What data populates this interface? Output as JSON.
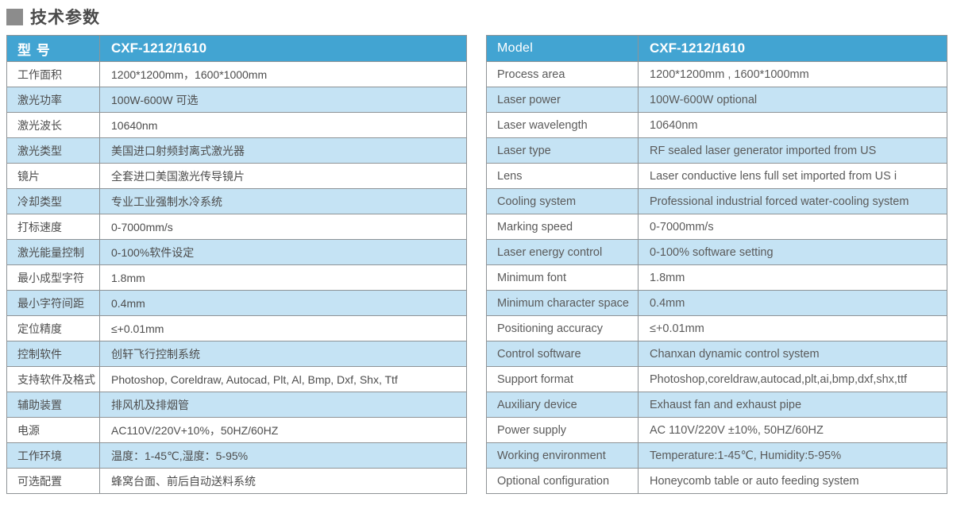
{
  "page_title": {
    "text": "技术参数"
  },
  "colors": {
    "header_bg": "#42A4D2",
    "row_alt_bg": "#C5E3F4",
    "row_bg": "#FFFFFF",
    "border": "#8E9396",
    "header_text": "#FFFFFF",
    "title_square": "#8C8C8C"
  },
  "left_table": {
    "header": {
      "label": "型 号",
      "value": "CXF-1212/1610"
    },
    "rows": [
      {
        "label": "工作面积",
        "value": "1200*1200mm，1600*1000mm"
      },
      {
        "label": "激光功率",
        "value": "100W-600W 可选"
      },
      {
        "label": "激光波长",
        "value": "10640nm"
      },
      {
        "label": "激光类型",
        "value": "美国进口射频封离式激光器"
      },
      {
        "label": "镜片",
        "value": "全套进口美国激光传导镜片"
      },
      {
        "label": "冷却类型",
        "value": "专业工业强制水冷系统"
      },
      {
        "label": "打标速度",
        "value": "0-7000mm/s"
      },
      {
        "label": "激光能量控制",
        "value": "0-100%软件设定"
      },
      {
        "label": "最小成型字符",
        "value": "1.8mm"
      },
      {
        "label": "最小字符间距",
        "value": "0.4mm"
      },
      {
        "label": "定位精度",
        "value": "≤+0.01mm"
      },
      {
        "label": "控制软件",
        "value": "创轩飞行控制系统"
      },
      {
        "label": "支持软件及格式",
        "value": "Photoshop, Coreldraw, Autocad, Plt, Al, Bmp, Dxf, Shx, Ttf"
      },
      {
        "label": "辅助装置",
        "value": "排风机及排烟管"
      },
      {
        "label": "电源",
        "value": "AC110V/220V+10%，50HZ/60HZ"
      },
      {
        "label": "工作环境",
        "value": "温度：1-45℃,湿度：5-95%"
      },
      {
        "label": "可选配置",
        "value": "蜂窝台面、前后自动送料系统"
      }
    ]
  },
  "right_table": {
    "header": {
      "label": "Model",
      "value": "CXF-1212/1610"
    },
    "rows": [
      {
        "label": "Process area",
        "value": "1200*1200mm , 1600*1000mm"
      },
      {
        "label": "Laser power",
        "value": "100W-600W optional"
      },
      {
        "label": "Laser wavelength",
        "value": "10640nm"
      },
      {
        "label": "Laser type",
        "value": "RF sealed laser generator imported from US"
      },
      {
        "label": "Lens",
        "value": "Laser conductive lens full set imported from US i"
      },
      {
        "label": "Cooling system",
        "value": "Professional industrial forced water-cooling system"
      },
      {
        "label": "Marking speed",
        "value": "0-7000mm/s"
      },
      {
        "label": "Laser energy control",
        "value": "0-100% software setting"
      },
      {
        "label": "Minimum  font",
        "value": "1.8mm"
      },
      {
        "label": "Minimum character space",
        "value": "0.4mm"
      },
      {
        "label": "Positioning accuracy",
        "value": "≤+0.01mm"
      },
      {
        "label": "Control software",
        "value": "Chanxan dynamic control system"
      },
      {
        "label": "Support format",
        "value": "Photoshop,coreldraw,autocad,plt,ai,bmp,dxf,shx,ttf"
      },
      {
        "label": "Auxiliary device",
        "value": "Exhaust fan and exhaust pipe"
      },
      {
        "label": "Power supply",
        "value": "AC 110V/220V ±10%, 50HZ/60HZ"
      },
      {
        "label": "Working environment",
        "value": "Temperature:1-45℃, Humidity:5-95%"
      },
      {
        "label": "Optional configuration",
        "value": "Honeycomb table or auto feeding system"
      }
    ]
  }
}
